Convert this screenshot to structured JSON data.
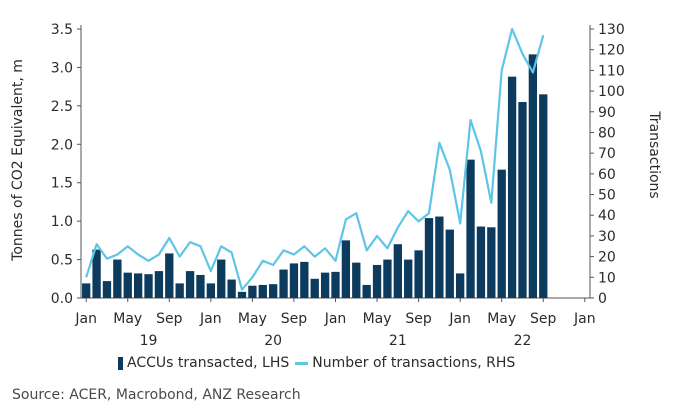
{
  "chart_data": {
    "type": "bar",
    "ylabel_left": "Tonnes of CO2 Equivalent, m",
    "ylabel_right": "Transactions",
    "ylim_left": [
      0,
      3.5
    ],
    "ylim_right": [
      0,
      130
    ],
    "left_ticks": [
      "0.0",
      "0.5",
      "1.0",
      "1.5",
      "2.0",
      "2.5",
      "3.0",
      "3.5"
    ],
    "right_ticks": [
      "0",
      "10",
      "20",
      "30",
      "40",
      "50",
      "60",
      "70",
      "80",
      "90",
      "100",
      "110",
      "120",
      "130"
    ],
    "x_month_labels": [
      "Jan",
      "May",
      "Sep",
      "Jan",
      "May",
      "Sep",
      "Jan",
      "May",
      "Sep",
      "Jan",
      "May",
      "Sep",
      "Jan"
    ],
    "x_year_labels": [
      "19",
      "20",
      "21",
      "22"
    ],
    "grid": false,
    "legend_position": "bottom",
    "series": [
      {
        "name": "ACCUs transacted, LHS",
        "type": "bar",
        "color": "#0d3b5e",
        "values": [
          0.19,
          0.63,
          0.22,
          0.5,
          0.33,
          0.32,
          0.31,
          0.35,
          0.58,
          0.19,
          0.35,
          0.3,
          0.19,
          0.5,
          0.24,
          0.08,
          0.16,
          0.17,
          0.18,
          0.37,
          0.45,
          0.47,
          0.25,
          0.33,
          0.34,
          0.75,
          0.46,
          0.17,
          0.43,
          0.5,
          0.7,
          0.5,
          0.62,
          1.04,
          1.06,
          0.89,
          0.32,
          1.8,
          0.93,
          0.92,
          1.67,
          2.88,
          2.55,
          3.17,
          2.65
        ]
      },
      {
        "name": "Number of transactions, RHS",
        "type": "line",
        "color": "#5ec5e6",
        "values": [
          10,
          26,
          19,
          21,
          25,
          21,
          18,
          21,
          29,
          20,
          27,
          25,
          13,
          25,
          22,
          4,
          10,
          18,
          16,
          23,
          21,
          25,
          20,
          24,
          18,
          38,
          41,
          23,
          30,
          24,
          34,
          42,
          37,
          41,
          75,
          62,
          36,
          86,
          71,
          46,
          110,
          130,
          118,
          109,
          127
        ]
      }
    ]
  },
  "footer": {
    "source": "Source:  ACER, Macrobond, ANZ Research"
  }
}
